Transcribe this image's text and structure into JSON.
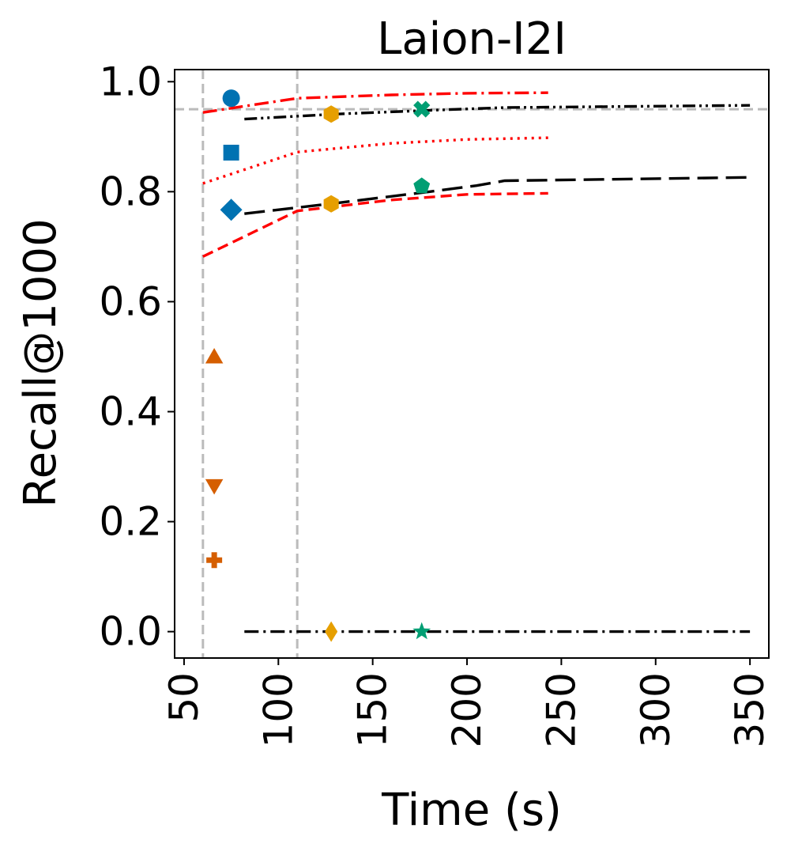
{
  "chart_data": {
    "type": "scatter",
    "title": "Laion-I2I",
    "xlabel": "Time (s)",
    "ylabel": "Recall@1000",
    "xlim": [
      45,
      360
    ],
    "ylim": [
      -0.048,
      1.022
    ],
    "xticks": [
      "50",
      "100",
      "150",
      "200",
      "250",
      "300",
      "350"
    ],
    "yticks": [
      "0.0",
      "0.2",
      "0.4",
      "0.6",
      "0.8",
      "1.0"
    ],
    "xtick_values": [
      50,
      100,
      150,
      200,
      250,
      300,
      350
    ],
    "ytick_values": [
      0.0,
      0.2,
      0.4,
      0.6,
      0.8,
      1.0
    ],
    "grid": false,
    "reference_lines": {
      "horizontal": [
        0.95
      ],
      "vertical": [
        60,
        110
      ],
      "color": "#bbbbbb"
    },
    "series": [
      {
        "style": "dashdot",
        "color": "#ff0000",
        "x": [
          60,
          110,
          160,
          200,
          243
        ],
        "y": [
          0.944,
          0.97,
          0.976,
          0.979,
          0.98
        ]
      },
      {
        "style": "dotted",
        "color": "#ff0000",
        "x": [
          60,
          110,
          160,
          200,
          243
        ],
        "y": [
          0.815,
          0.872,
          0.888,
          0.895,
          0.898
        ]
      },
      {
        "style": "dashed",
        "color": "#ff0000",
        "x": [
          60,
          110,
          160,
          200,
          243
        ],
        "y": [
          0.682,
          0.765,
          0.785,
          0.795,
          0.797
        ]
      },
      {
        "style": "dashdotdot",
        "color": "#000000",
        "x": [
          82,
          130,
          180,
          220,
          350
        ],
        "y": [
          0.932,
          0.941,
          0.948,
          0.953,
          0.957
        ]
      },
      {
        "style": "longdash",
        "color": "#000000",
        "x": [
          82,
          130,
          180,
          205,
          220,
          350
        ],
        "y": [
          0.76,
          0.779,
          0.8,
          0.811,
          0.82,
          0.826
        ]
      },
      {
        "style": "dashdot",
        "color": "#000000",
        "x": [
          82,
          350
        ],
        "y": [
          0.0,
          0.0
        ]
      }
    ],
    "points": [
      {
        "marker": "circle",
        "color": "#0072b2",
        "x": 75,
        "y": 0.97
      },
      {
        "marker": "square",
        "color": "#0072b2",
        "x": 75,
        "y": 0.871
      },
      {
        "marker": "diamond",
        "color": "#0072b2",
        "x": 75,
        "y": 0.767
      },
      {
        "marker": "triangle-up",
        "color": "#d55e00",
        "x": 66,
        "y": 0.5
      },
      {
        "marker": "triangle-down",
        "color": "#d55e00",
        "x": 66,
        "y": 0.265
      },
      {
        "marker": "plus",
        "color": "#d55e00",
        "x": 66,
        "y": 0.13
      },
      {
        "marker": "hexagon",
        "color": "#e69f00",
        "x": 128,
        "y": 0.941
      },
      {
        "marker": "hexagon",
        "color": "#e69f00",
        "x": 128,
        "y": 0.778
      },
      {
        "marker": "thin-diamond",
        "color": "#e69f00",
        "x": 128,
        "y": 0.0
      },
      {
        "marker": "x-filled",
        "color": "#009e73",
        "x": 176,
        "y": 0.95
      },
      {
        "marker": "pentagon",
        "color": "#009e73",
        "x": 176,
        "y": 0.81
      },
      {
        "marker": "star",
        "color": "#009e73",
        "x": 176,
        "y": 0.0
      }
    ]
  }
}
